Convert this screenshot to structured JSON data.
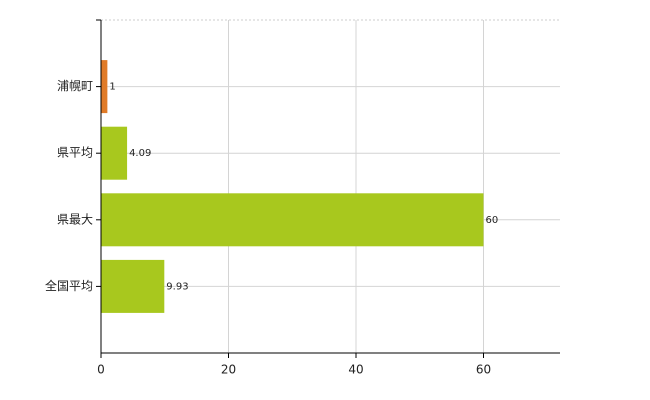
{
  "chart_data": {
    "type": "bar",
    "orientation": "horizontal",
    "categories": [
      "浦幌町",
      "県平均",
      "県最大",
      "全国平均"
    ],
    "values": [
      1,
      4.09,
      60,
      9.93
    ],
    "colors": [
      "#e07b28",
      "#a8c81e",
      "#a8c81e",
      "#a8c81e"
    ],
    "xlim": [
      0,
      72
    ],
    "xticks": [
      0,
      20,
      40,
      60
    ],
    "grid": true
  }
}
